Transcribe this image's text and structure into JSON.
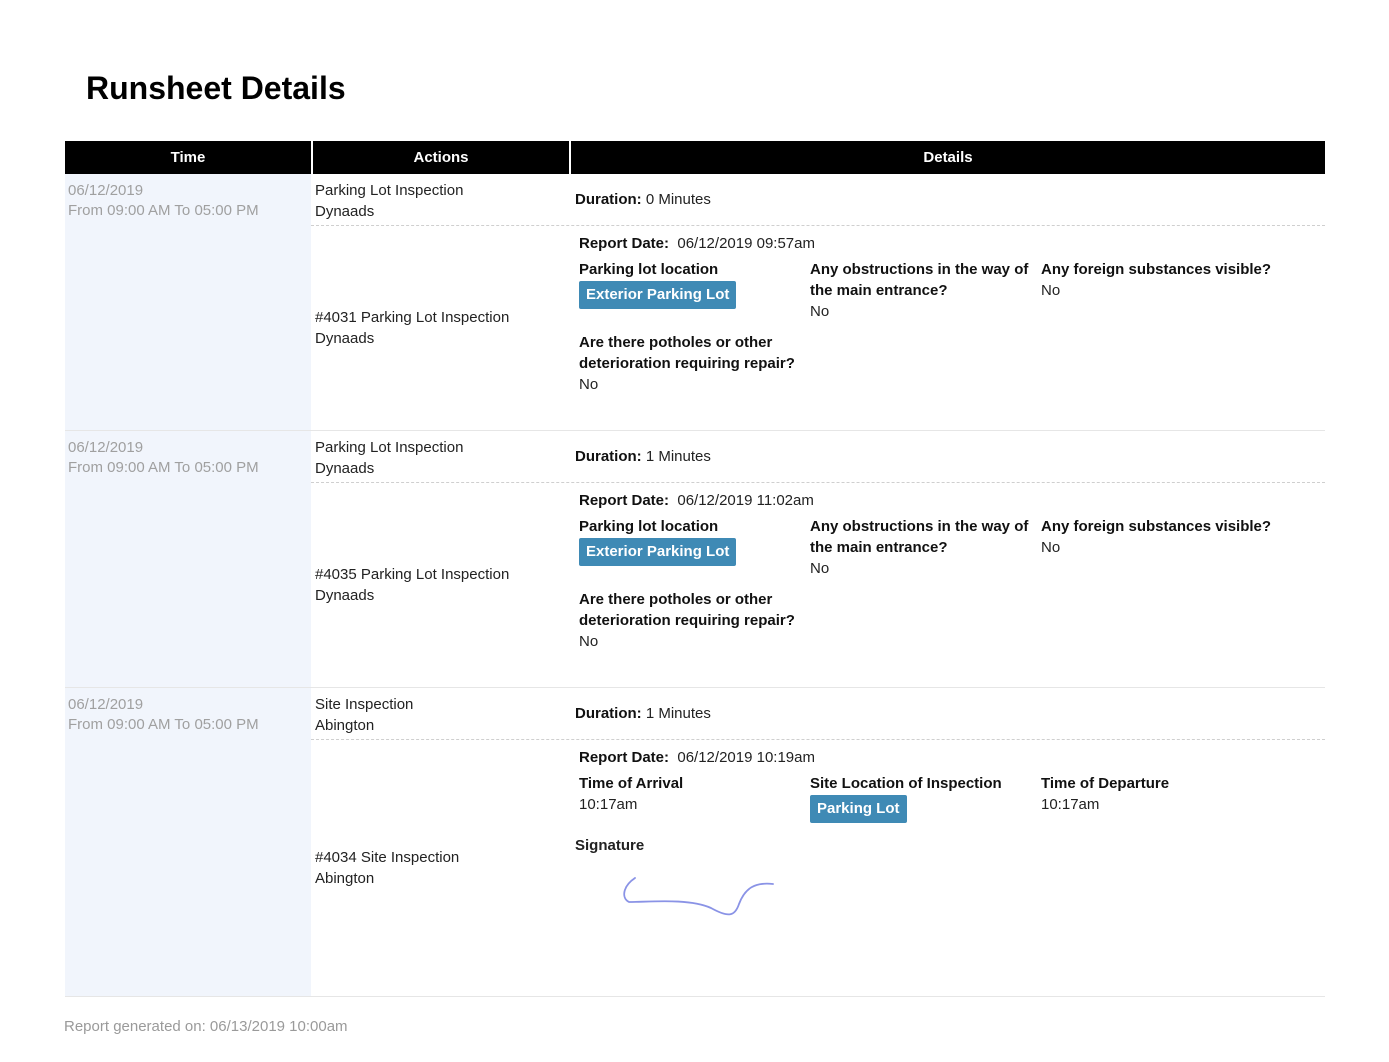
{
  "page": {
    "title": "Runsheet Details"
  },
  "table": {
    "headers": {
      "time": "Time",
      "actions": "Actions",
      "details": "Details"
    }
  },
  "labels": {
    "duration": "Duration:",
    "report_date": "Report Date:",
    "signature": "Signature"
  },
  "groups": [
    {
      "date": "06/12/2019",
      "range": "From 09:00 AM To 05:00 PM",
      "summary": {
        "action": "Parking Lot Inspection",
        "location": "Dynaads",
        "duration": "0 Minutes"
      },
      "report": {
        "title": "#4031 Parking Lot Inspection",
        "location": "Dynaads",
        "report_date": "06/12/2019 09:57am",
        "fields": [
          {
            "q": "Parking lot location",
            "tag": "Exterior Parking Lot"
          },
          {
            "q": "Any obstructions in the way of the main entrance?",
            "a": "No"
          },
          {
            "q": "Any foreign substances visible?",
            "a": "No"
          },
          {
            "q": "Are there potholes or other deterioration requiring repair?",
            "a": "No"
          }
        ]
      }
    },
    {
      "date": "06/12/2019",
      "range": "From 09:00 AM To 05:00 PM",
      "summary": {
        "action": "Parking Lot Inspection",
        "location": "Dynaads",
        "duration": "1 Minutes"
      },
      "report": {
        "title": "#4035 Parking Lot Inspection",
        "location": "Dynaads",
        "report_date": "06/12/2019 11:02am",
        "fields": [
          {
            "q": "Parking lot location",
            "tag": "Exterior Parking Lot"
          },
          {
            "q": "Any obstructions in the way of the main entrance?",
            "a": "No"
          },
          {
            "q": "Any foreign substances visible?",
            "a": "No"
          },
          {
            "q": "Are there potholes or other deterioration requiring repair?",
            "a": "No"
          }
        ]
      }
    },
    {
      "date": "06/12/2019",
      "range": "From 09:00 AM To 05:00 PM",
      "summary": {
        "action": "Site Inspection",
        "location": "Abington",
        "duration": "1 Minutes"
      },
      "report": {
        "title": "#4034 Site Inspection",
        "location": "Abington",
        "report_date": "06/12/2019 10:19am",
        "fields": [
          {
            "q": "Time of Arrival",
            "a": "10:17am"
          },
          {
            "q": "Site Location of Inspection",
            "tag": "Parking Lot"
          },
          {
            "q": "Time of Departure",
            "a": "10:17am"
          }
        ]
      }
    }
  ],
  "colors": {
    "tag": "#3f8ab5",
    "time_column": "#f1f5fc",
    "header": "#000000",
    "signature_ink": "#8a93e6"
  },
  "footer": {
    "generated": "Report generated on: 06/13/2019 10:00am"
  }
}
